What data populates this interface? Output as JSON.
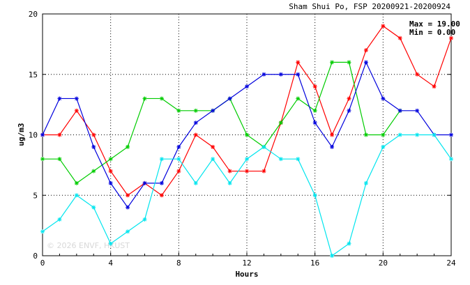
{
  "chart_data": {
    "type": "line",
    "title": "Sham Shui Po, FSP 20200921-20200924",
    "xlabel": "Hours",
    "ylabel": "ug/m3",
    "xlim": [
      0,
      24
    ],
    "ylim": [
      0,
      20
    ],
    "xticks": [
      0,
      4,
      8,
      12,
      16,
      20,
      24
    ],
    "yticks": [
      0,
      5,
      10,
      15,
      20
    ],
    "grid": true,
    "stats": {
      "max_label": "Max = 19.00",
      "min_label": "Min =  0.00"
    },
    "watermark": "© 2026  ENVF, HKUST",
    "x": [
      0,
      1,
      2,
      3,
      4,
      5,
      6,
      7,
      8,
      9,
      10,
      11,
      12,
      13,
      14,
      15,
      16,
      17,
      18,
      19,
      20,
      21,
      22,
      23,
      24
    ],
    "series": [
      {
        "color": "#ff0000",
        "values": [
          10,
          10,
          12,
          10,
          7,
          5,
          6,
          5,
          7,
          10,
          9,
          7,
          7,
          7,
          11,
          16,
          14,
          10,
          13,
          17,
          19,
          18,
          15,
          14,
          18
        ]
      },
      {
        "color": "#00cc00",
        "values": [
          8,
          8,
          6,
          7,
          8,
          9,
          13,
          13,
          12,
          12,
          12,
          13,
          10,
          9,
          11,
          13,
          12,
          16,
          16,
          10,
          10,
          12,
          null,
          null,
          null
        ]
      },
      {
        "color": "#0000dd",
        "values": [
          10,
          13,
          13,
          9,
          6,
          4,
          6,
          6,
          9,
          11,
          12,
          13,
          14,
          15,
          15,
          15,
          11,
          9,
          12,
          16,
          13,
          12,
          12,
          10,
          10
        ]
      },
      {
        "color": "#00e5ee",
        "values": [
          2,
          3,
          5,
          4,
          1,
          2,
          3,
          8,
          8,
          6,
          8,
          6,
          8,
          9,
          8,
          8,
          5,
          0,
          1,
          6,
          9,
          10,
          10,
          10,
          8
        ]
      }
    ]
  }
}
